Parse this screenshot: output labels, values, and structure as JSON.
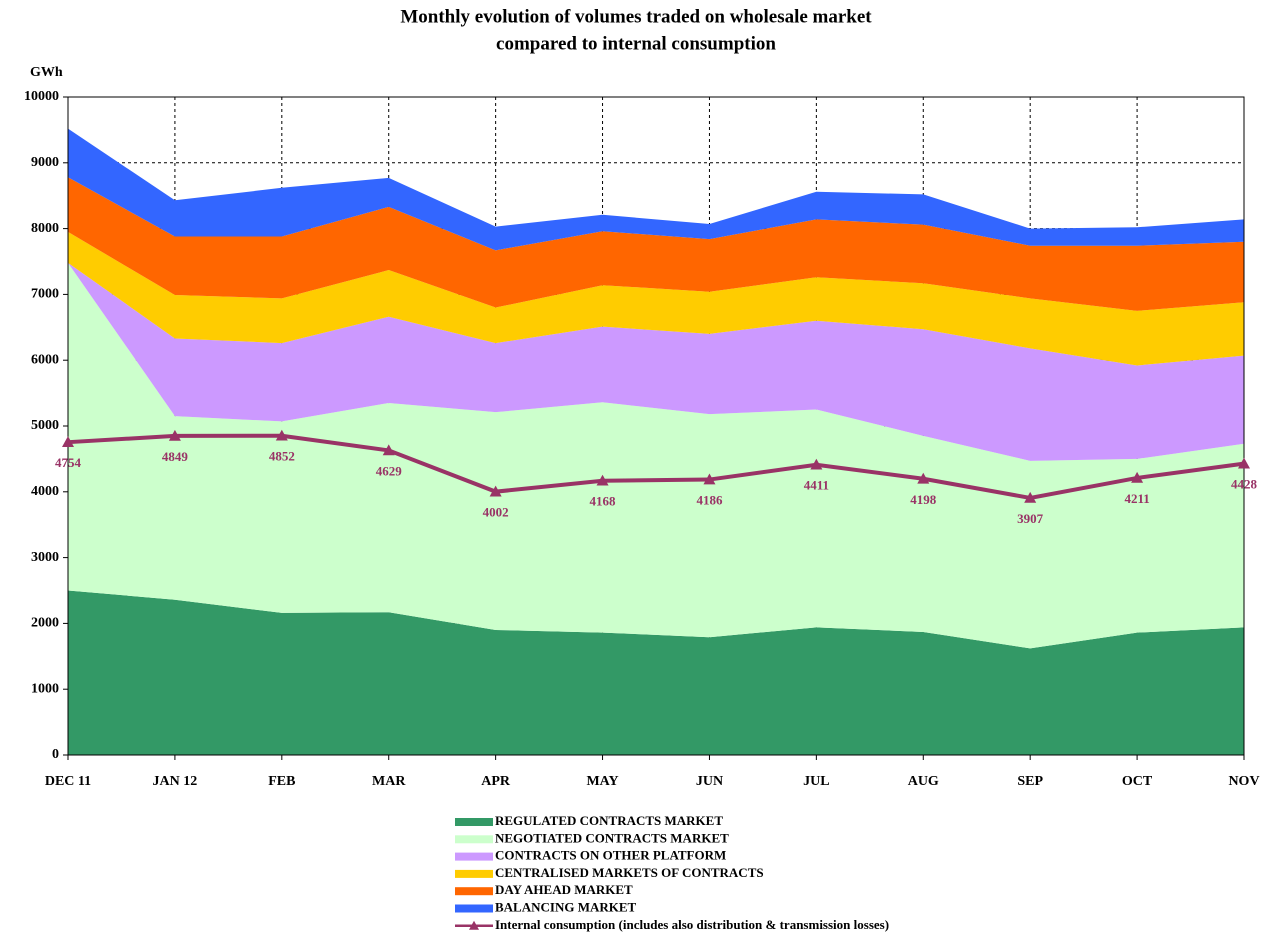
{
  "chart_data": {
    "type": "area",
    "stacked": true,
    "title": [
      "Monthly evolution of volumes traded on wholesale market",
      "compared to internal consumption"
    ],
    "y_label": "GWh",
    "categories": [
      "DEC 11",
      "JAN 12",
      "FEB",
      "MAR",
      "APR",
      "MAY",
      "JUN",
      "JUL",
      "AUG",
      "SEP",
      "OCT",
      "NOV"
    ],
    "ylim": [
      0,
      10000
    ],
    "yticks": [
      0,
      1000,
      2000,
      3000,
      4000,
      5000,
      6000,
      7000,
      8000,
      9000,
      10000
    ],
    "grid": true,
    "legend": "bottom",
    "series": [
      {
        "name": "REGULATED CONTRACTS MARKET",
        "color": "#339966",
        "values": [
          2500,
          2360,
          2160,
          2170,
          1900,
          1860,
          1790,
          1940,
          1870,
          1620,
          1860,
          1940
        ]
      },
      {
        "name": "NEGOTIATED CONTRACTS MARKET",
        "color": "#ccffcc",
        "values": [
          4980,
          2790,
          2910,
          3180,
          3310,
          3500,
          3390,
          3310,
          2980,
          2850,
          2640,
          2790
        ]
      },
      {
        "name": "CONTRACTS ON OTHER PLATFORM",
        "color": "#cc99ff",
        "values": [
          0,
          1180,
          1190,
          1310,
          1050,
          1150,
          1220,
          1350,
          1620,
          1710,
          1420,
          1340
        ]
      },
      {
        "name": "CENTRALISED MARKETS OF CONTRACTS",
        "color": "#ffcc00",
        "values": [
          470,
          660,
          680,
          710,
          540,
          630,
          640,
          660,
          700,
          760,
          830,
          810
        ]
      },
      {
        "name": "DAY AHEAD MARKET",
        "color": "#ff6600",
        "values": [
          830,
          890,
          940,
          960,
          870,
          820,
          800,
          880,
          890,
          800,
          990,
          920
        ]
      },
      {
        "name": "BALANCING MARKET",
        "color": "#3366ff",
        "values": [
          740,
          550,
          740,
          440,
          360,
          250,
          230,
          420,
          460,
          260,
          280,
          340
        ]
      },
      {
        "name": "Internal consumption (includes also distribution & transmission losses)",
        "type": "line",
        "color": "#993366",
        "values": [
          4754,
          4849,
          4852,
          4629,
          4002,
          4168,
          4186,
          4411,
          4198,
          3907,
          4211,
          4428
        ]
      }
    ]
  }
}
